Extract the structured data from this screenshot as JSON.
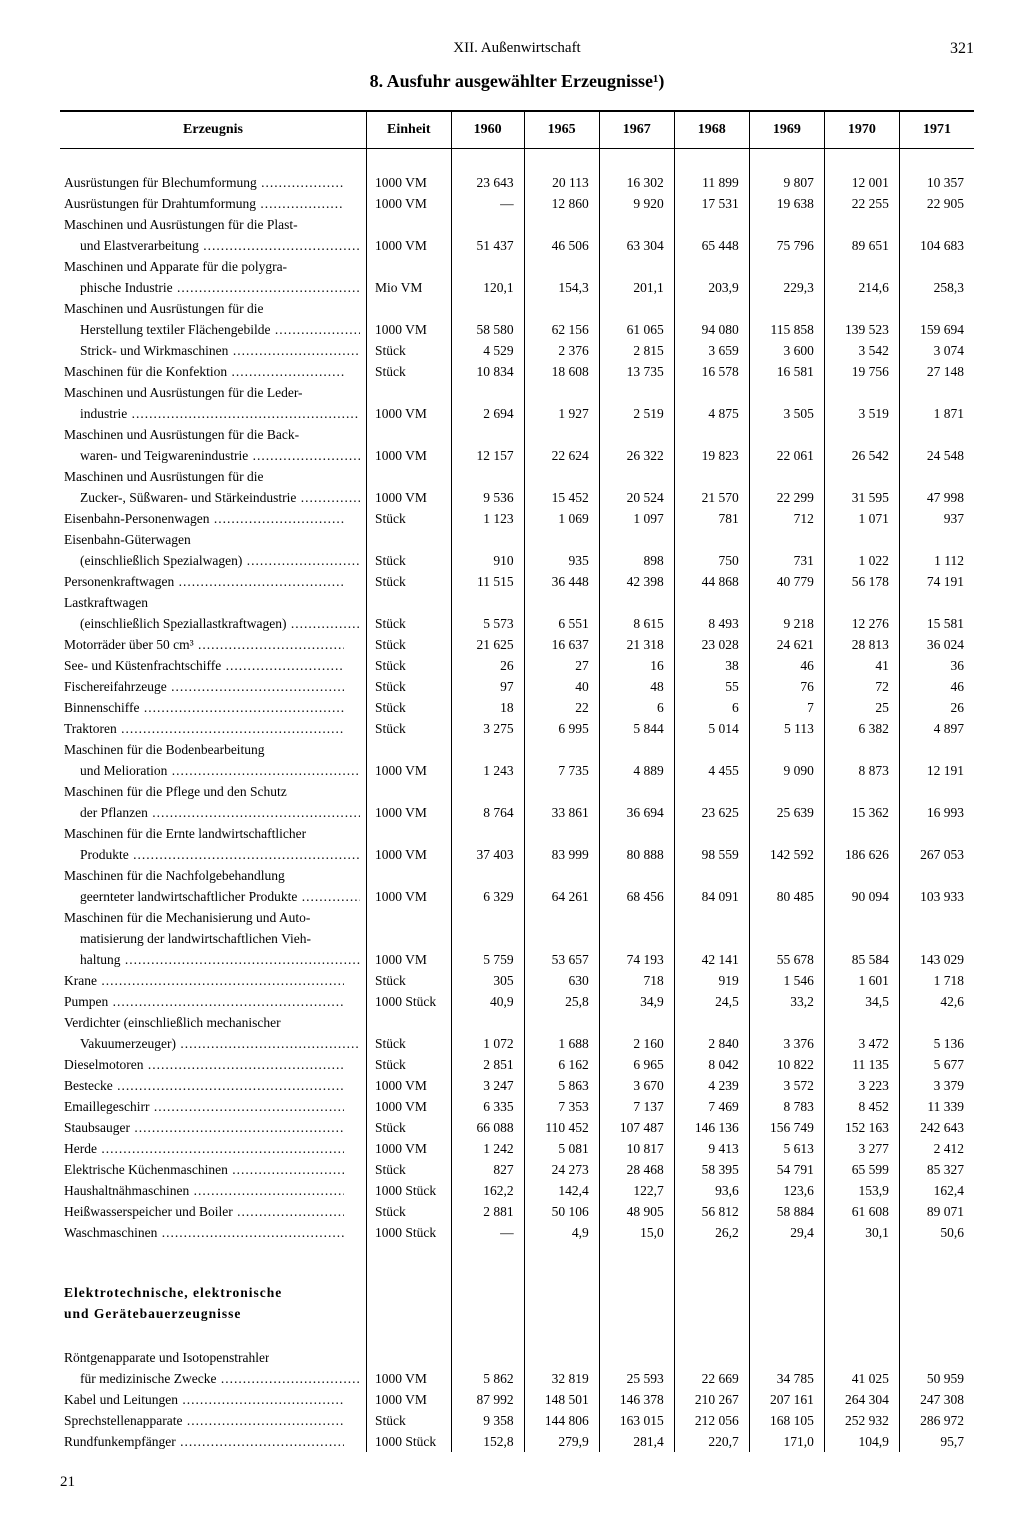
{
  "page_number": "321",
  "chapter": "XII. Außenwirtschaft",
  "title": "8. Ausfuhr ausgewählter Erzeugnisse¹)",
  "footer": "21",
  "columns": {
    "product": "Erzeugnis",
    "unit": "Einheit",
    "years": [
      "1960",
      "1965",
      "1967",
      "1968",
      "1969",
      "1970",
      "1971"
    ]
  },
  "rows": [
    {
      "l": "Ausrüstungen für Blechumformung",
      "d": true,
      "u": "1000 VM",
      "v": [
        "23 643",
        "20 113",
        "16 302",
        "11 899",
        "9 807",
        "12 001",
        "10 357"
      ]
    },
    {
      "l": "Ausrüstungen für Drahtumformung",
      "d": true,
      "u": "1000 VM",
      "v": [
        "—",
        "12 860",
        "9 920",
        "17 531",
        "19 638",
        "22 255",
        "22 905"
      ]
    },
    {
      "l": "Maschinen und Ausrüstungen für die Plast-"
    },
    {
      "l": "und Elastverarbeitung",
      "i": true,
      "d": true,
      "u": "1000 VM",
      "v": [
        "51 437",
        "46 506",
        "63 304",
        "65 448",
        "75 796",
        "89 651",
        "104 683"
      ]
    },
    {
      "l": "Maschinen und Apparate für die polygra-"
    },
    {
      "l": "phische Industrie",
      "i": true,
      "d": true,
      "u": "Mio VM",
      "v": [
        "120,1",
        "154,3",
        "201,1",
        "203,9",
        "229,3",
        "214,6",
        "258,3"
      ]
    },
    {
      "l": "Maschinen und Ausrüstungen für die"
    },
    {
      "l": "Herstellung textiler Flächengebilde",
      "i": true,
      "d": true,
      "u": "1000 VM",
      "v": [
        "58 580",
        "62 156",
        "61 065",
        "94 080",
        "115 858",
        "139 523",
        "159 694"
      ]
    },
    {
      "l": "Strick- und Wirkmaschinen",
      "i": true,
      "d": true,
      "u": "Stück",
      "v": [
        "4 529",
        "2 376",
        "2 815",
        "3 659",
        "3 600",
        "3 542",
        "3 074"
      ]
    },
    {
      "l": "Maschinen für die Konfektion",
      "d": true,
      "u": "Stück",
      "v": [
        "10 834",
        "18 608",
        "13 735",
        "16 578",
        "16 581",
        "19 756",
        "27 148"
      ]
    },
    {
      "l": "Maschinen und Ausrüstungen für die Leder-"
    },
    {
      "l": "industrie",
      "i": true,
      "d": true,
      "u": "1000 VM",
      "v": [
        "2 694",
        "1 927",
        "2 519",
        "4 875",
        "3 505",
        "3 519",
        "1 871"
      ]
    },
    {
      "l": "Maschinen und Ausrüstungen für die Back-"
    },
    {
      "l": "waren- und Teigwarenindustrie",
      "i": true,
      "d": true,
      "u": "1000 VM",
      "v": [
        "12 157",
        "22 624",
        "26 322",
        "19 823",
        "22 061",
        "26 542",
        "24 548"
      ]
    },
    {
      "l": "Maschinen und Ausrüstungen für die"
    },
    {
      "l": "Zucker-, Süßwaren- und Stärkeindustrie",
      "i": true,
      "d": true,
      "u": "1000 VM",
      "v": [
        "9 536",
        "15 452",
        "20 524",
        "21 570",
        "22 299",
        "31 595",
        "47 998"
      ]
    },
    {
      "l": "Eisenbahn-Personenwagen",
      "d": true,
      "u": "Stück",
      "v": [
        "1 123",
        "1 069",
        "1 097",
        "781",
        "712",
        "1 071",
        "937"
      ]
    },
    {
      "l": "Eisenbahn-Güterwagen"
    },
    {
      "l": "(einschließlich Spezialwagen)",
      "i": true,
      "d": true,
      "u": "Stück",
      "v": [
        "910",
        "935",
        "898",
        "750",
        "731",
        "1 022",
        "1 112"
      ]
    },
    {
      "l": "Personenkraftwagen",
      "d": true,
      "u": "Stück",
      "v": [
        "11 515",
        "36 448",
        "42 398",
        "44 868",
        "40 779",
        "56 178",
        "74 191"
      ]
    },
    {
      "l": "Lastkraftwagen"
    },
    {
      "l": "(einschließlich Speziallastkraftwagen)",
      "i": true,
      "d": true,
      "u": "Stück",
      "v": [
        "5 573",
        "6 551",
        "8 615",
        "8 493",
        "9 218",
        "12 276",
        "15 581"
      ]
    },
    {
      "l": "Motorräder über 50 cm³",
      "d": true,
      "u": "Stück",
      "v": [
        "21 625",
        "16 637",
        "21 318",
        "23 028",
        "24 621",
        "28 813",
        "36 024"
      ]
    },
    {
      "l": "See- und Küstenfrachtschiffe",
      "d": true,
      "u": "Stück",
      "v": [
        "26",
        "27",
        "16",
        "38",
        "46",
        "41",
        "36"
      ]
    },
    {
      "l": "Fischereifahrzeuge",
      "d": true,
      "u": "Stück",
      "v": [
        "97",
        "40",
        "48",
        "55",
        "76",
        "72",
        "46"
      ]
    },
    {
      "l": "Binnenschiffe",
      "d": true,
      "u": "Stück",
      "v": [
        "18",
        "22",
        "6",
        "6",
        "7",
        "25",
        "26"
      ]
    },
    {
      "l": "Traktoren",
      "d": true,
      "u": "Stück",
      "v": [
        "3 275",
        "6 995",
        "5 844",
        "5 014",
        "5 113",
        "6 382",
        "4 897"
      ]
    },
    {
      "l": "Maschinen für die Bodenbearbeitung"
    },
    {
      "l": "und Melioration",
      "i": true,
      "d": true,
      "u": "1000 VM",
      "v": [
        "1 243",
        "7 735",
        "4 889",
        "4 455",
        "9 090",
        "8 873",
        "12 191"
      ]
    },
    {
      "l": "Maschinen für die Pflege und den Schutz"
    },
    {
      "l": "der Pflanzen",
      "i": true,
      "d": true,
      "u": "1000 VM",
      "v": [
        "8 764",
        "33 861",
        "36 694",
        "23 625",
        "25 639",
        "15 362",
        "16 993"
      ]
    },
    {
      "l": "Maschinen für die Ernte landwirtschaftlicher"
    },
    {
      "l": "Produkte",
      "i": true,
      "d": true,
      "u": "1000 VM",
      "v": [
        "37 403",
        "83 999",
        "80 888",
        "98 559",
        "142 592",
        "186 626",
        "267 053"
      ]
    },
    {
      "l": "Maschinen für die Nachfolgebehandlung"
    },
    {
      "l": "geernteter landwirtschaftlicher Produkte",
      "i": true,
      "d": true,
      "u": "1000 VM",
      "v": [
        "6 329",
        "64 261",
        "68 456",
        "84 091",
        "80 485",
        "90 094",
        "103 933"
      ]
    },
    {
      "l": "Maschinen für die Mechanisierung und Auto-"
    },
    {
      "l": "matisierung der landwirtschaftlichen Vieh-",
      "i": true
    },
    {
      "l": "haltung",
      "i": true,
      "d": true,
      "u": "1000 VM",
      "v": [
        "5 759",
        "53 657",
        "74 193",
        "42 141",
        "55 678",
        "85 584",
        "143 029"
      ]
    },
    {
      "l": "Krane",
      "d": true,
      "u": "Stück",
      "v": [
        "305",
        "630",
        "718",
        "919",
        "1 546",
        "1 601",
        "1 718"
      ]
    },
    {
      "l": "Pumpen",
      "d": true,
      "u": "1000 Stück",
      "v": [
        "40,9",
        "25,8",
        "34,9",
        "24,5",
        "33,2",
        "34,5",
        "42,6"
      ]
    },
    {
      "l": "Verdichter (einschließlich mechanischer"
    },
    {
      "l": "Vakuumerzeuger)",
      "i": true,
      "d": true,
      "u": "Stück",
      "v": [
        "1 072",
        "1 688",
        "2 160",
        "2 840",
        "3 376",
        "3 472",
        "5 136"
      ]
    },
    {
      "l": "Dieselmotoren",
      "d": true,
      "u": "Stück",
      "v": [
        "2 851",
        "6 162",
        "6 965",
        "8 042",
        "10 822",
        "11 135",
        "5 677"
      ]
    },
    {
      "l": "Bestecke",
      "d": true,
      "u": "1000 VM",
      "v": [
        "3 247",
        "5 863",
        "3 670",
        "4 239",
        "3 572",
        "3 223",
        "3 379"
      ]
    },
    {
      "l": "Emaillegeschirr",
      "d": true,
      "u": "1000 VM",
      "v": [
        "6 335",
        "7 353",
        "7 137",
        "7 469",
        "8 783",
        "8 452",
        "11 339"
      ]
    },
    {
      "l": "Staubsauger",
      "d": true,
      "u": "Stück",
      "v": [
        "66 088",
        "110 452",
        "107 487",
        "146 136",
        "156 749",
        "152 163",
        "242 643"
      ]
    },
    {
      "l": "Herde",
      "d": true,
      "u": "1000 VM",
      "v": [
        "1 242",
        "5 081",
        "10 817",
        "9 413",
        "5 613",
        "3 277",
        "2 412"
      ]
    },
    {
      "l": "Elektrische Küchenmaschinen",
      "d": true,
      "u": "Stück",
      "v": [
        "827",
        "24 273",
        "28 468",
        "58 395",
        "54 791",
        "65 599",
        "85 327"
      ]
    },
    {
      "l": "Haushaltnähmaschinen",
      "d": true,
      "u": "1000 Stück",
      "v": [
        "162,2",
        "142,4",
        "122,7",
        "93,6",
        "123,6",
        "153,9",
        "162,4"
      ]
    },
    {
      "l": "Heißwasserspeicher und Boiler",
      "d": true,
      "u": "Stück",
      "v": [
        "2 881",
        "50 106",
        "48 905",
        "56 812",
        "58 884",
        "61 608",
        "89 071"
      ]
    },
    {
      "l": "Waschmaschinen",
      "d": true,
      "u": "1000 Stück",
      "v": [
        "—",
        "4,9",
        "15,0",
        "26,2",
        "29,4",
        "30,1",
        "50,6"
      ]
    },
    {
      "spacer": "big"
    },
    {
      "l": "Elektrotechnische, elektronische",
      "section": true
    },
    {
      "l": "und Gerätebauerzeugnisse",
      "section": true
    },
    {
      "spacer": "small"
    },
    {
      "l": "Röntgenapparate und Isotopenstrahler"
    },
    {
      "l": "für medizinische Zwecke",
      "i": true,
      "d": true,
      "u": "1000 VM",
      "v": [
        "5 862",
        "32 819",
        "25 593",
        "22 669",
        "34 785",
        "41 025",
        "50 959"
      ]
    },
    {
      "l": "Kabel und Leitungen",
      "d": true,
      "u": "1000 VM",
      "v": [
        "87 992",
        "148 501",
        "146 378",
        "210 267",
        "207 161",
        "264 304",
        "247 308"
      ]
    },
    {
      "l": "Sprechstellenapparate",
      "d": true,
      "u": "Stück",
      "v": [
        "9 358",
        "144 806",
        "163 015",
        "212 056",
        "168 105",
        "252 932",
        "286 972"
      ]
    },
    {
      "l": "Rundfunkempfänger",
      "d": true,
      "u": "1000 Stück",
      "v": [
        "152,8",
        "279,9",
        "281,4",
        "220,7",
        "171,0",
        "104,9",
        "95,7"
      ]
    }
  ]
}
